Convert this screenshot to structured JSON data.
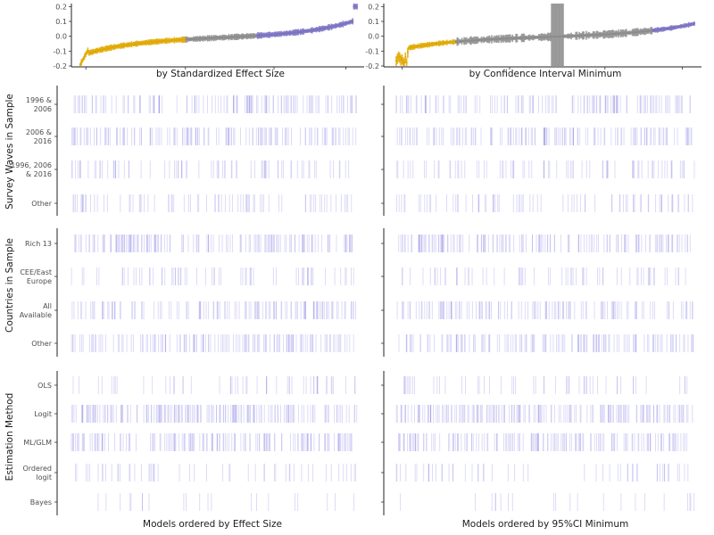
{
  "chart_data": {
    "type": "specification-curve",
    "effect_panels": [
      {
        "id": "left",
        "xlabel": "by Standardized Effect Size",
        "ylim": [
          -0.2,
          0.22
        ],
        "yticks": [
          "0.2",
          "0.1",
          "0.0",
          "-0.1",
          "-0.2"
        ],
        "ytick_values": [
          0.2,
          0.1,
          0.0,
          -0.1,
          -0.2
        ],
        "segments": [
          {
            "color": "#E0A800",
            "from": 0.0,
            "to": 0.38
          },
          {
            "color": "#8c8c8c",
            "from": 0.38,
            "to": 0.64
          },
          {
            "color": "#7B72C2",
            "from": 0.64,
            "to": 1.0
          }
        ]
      },
      {
        "id": "right",
        "xlabel": "by Confidence Interval Minimum",
        "ylim": [
          -0.2,
          0.22
        ],
        "yticks": [
          "0.2",
          "0.1",
          "0.0",
          "-0.1",
          "-0.2"
        ],
        "ytick_values": [
          0.2,
          0.1,
          0.0,
          -0.1,
          -0.2
        ],
        "segments": [
          {
            "color": "#E0A800",
            "from": 0.0,
            "to": 0.2
          },
          {
            "color": "#8c8c8c",
            "from": 0.2,
            "to": 0.86
          },
          {
            "color": "#7B72C2",
            "from": 0.86,
            "to": 1.0
          }
        ]
      }
    ],
    "indicator_groups": [
      {
        "ylabel": "Survey Waves in Sample",
        "rows": [
          {
            "label": [
              "1996 &",
              "2006"
            ],
            "density": 0.5
          },
          {
            "label": [
              "2006 &",
              "2016"
            ],
            "density": 0.55
          },
          {
            "label": [
              "1996, 2006",
              "& 2016"
            ],
            "density": 0.3
          },
          {
            "label": [
              "Other"
            ],
            "density": 0.3
          }
        ]
      },
      {
        "ylabel": "Countries in Sample",
        "rows": [
          {
            "label": [
              "Rich 13"
            ],
            "density": 0.6
          },
          {
            "label": [
              "CEE/East",
              "Europe"
            ],
            "density": 0.25
          },
          {
            "label": [
              "All",
              "Available"
            ],
            "density": 0.5
          },
          {
            "label": [
              "Other"
            ],
            "density": 0.55
          }
        ]
      },
      {
        "ylabel": "Estimation Method",
        "rows": [
          {
            "label": [
              "OLS"
            ],
            "density": 0.2
          },
          {
            "label": [
              "Logit"
            ],
            "density": 0.7
          },
          {
            "label": [
              "ML/GLM"
            ],
            "density": 0.6
          },
          {
            "label": [
              "Ordered",
              "logit"
            ],
            "density": 0.2
          },
          {
            "label": [
              "Bayes"
            ],
            "density": 0.08
          }
        ]
      }
    ],
    "bottom_xlabels": [
      "Models ordered by Effect Size",
      "Models ordered by 95%CI Minimum"
    ],
    "indicator_color": "#7B72E0"
  }
}
